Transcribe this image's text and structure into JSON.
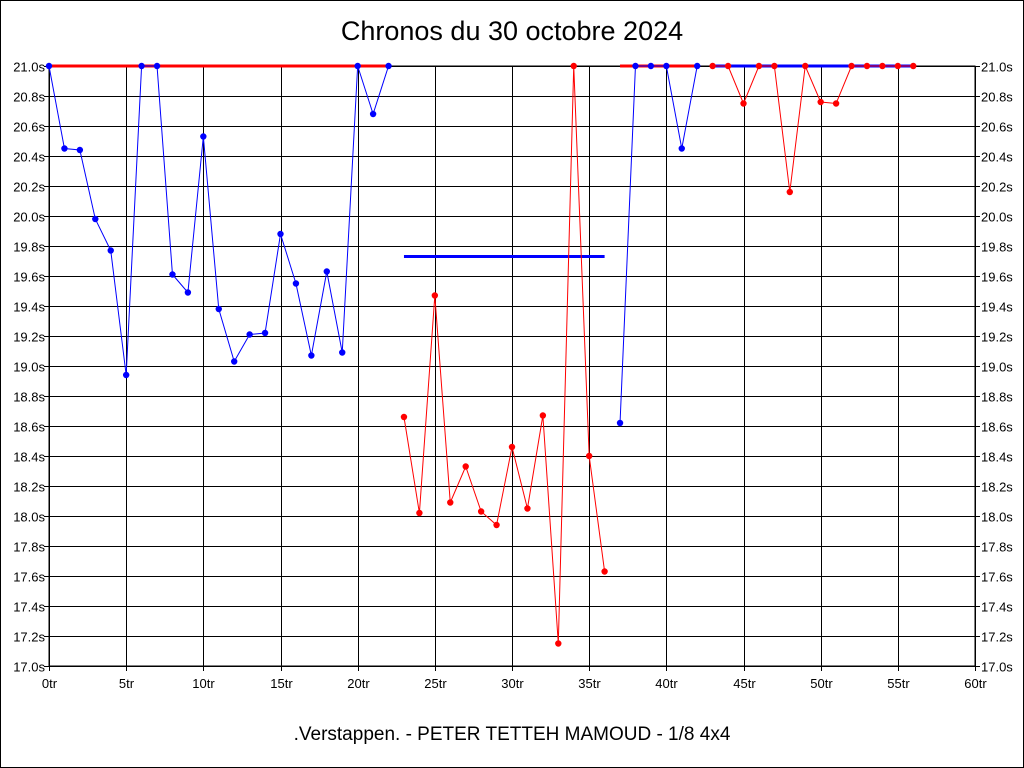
{
  "chart_data": {
    "type": "line",
    "title": "Chronos du 30 octobre 2024",
    "footer": ".Verstappen. - PETER TETTEH MAMOUD - 1/8 4x4",
    "xlim": [
      0,
      60
    ],
    "ylim": [
      17.0,
      21.0
    ],
    "x_tick_labels": [
      "0tr",
      "5tr",
      "10tr",
      "15tr",
      "20tr",
      "25tr",
      "30tr",
      "35tr",
      "40tr",
      "45tr",
      "50tr",
      "55tr",
      "60tr"
    ],
    "y_tick_labels": [
      "17.0s",
      "17.2s",
      "17.4s",
      "17.6s",
      "17.8s",
      "18.0s",
      "18.2s",
      "18.4s",
      "18.6s",
      "18.8s",
      "19.0s",
      "19.2s",
      "19.4s",
      "19.6s",
      "19.8s",
      "20.0s",
      "20.2s",
      "20.4s",
      "20.6s",
      "20.8s",
      "21.0s"
    ],
    "grid": true,
    "series": [
      {
        "color": "#0000ff",
        "x": [
          0,
          1,
          2,
          3,
          4,
          5,
          6,
          7,
          8,
          9,
          10,
          11,
          12,
          13,
          14,
          15,
          16,
          17,
          18,
          19,
          20,
          21,
          22
        ],
        "y": [
          21.0,
          20.45,
          20.44,
          19.98,
          19.77,
          18.94,
          21.0,
          21.0,
          19.61,
          19.49,
          20.53,
          19.38,
          19.03,
          19.21,
          19.22,
          19.88,
          19.55,
          19.07,
          19.63,
          19.09,
          21.0,
          20.68,
          21.0
        ]
      },
      {
        "color": "#ff0000",
        "x": [
          23,
          24,
          25,
          26,
          27,
          28,
          29,
          30,
          31,
          32,
          33,
          34,
          35,
          36
        ],
        "y": [
          18.66,
          18.02,
          19.47,
          18.09,
          18.33,
          18.03,
          17.94,
          18.46,
          18.05,
          18.67,
          17.15,
          21.0,
          18.4,
          17.63
        ]
      },
      {
        "color": "#0000ff",
        "x": [
          37,
          38,
          39,
          40,
          41,
          42
        ],
        "y": [
          18.62,
          21.0,
          21.0,
          21.0,
          20.45,
          21.0
        ]
      },
      {
        "color": "#ff0000",
        "x": [
          43,
          44,
          45,
          46,
          47,
          48,
          49,
          50,
          51,
          52,
          53,
          54,
          55,
          56
        ],
        "y": [
          21.0,
          21.0,
          20.75,
          21.0,
          21.0,
          20.16,
          21.0,
          20.76,
          20.75,
          21.0,
          21.0,
          21.0,
          21.0,
          21.0
        ]
      }
    ],
    "reference_lines": [
      {
        "color": "#ff0000",
        "x": [
          0,
          22
        ],
        "y": 21.0
      },
      {
        "color": "#0000ff",
        "x": [
          23,
          36
        ],
        "y": 19.73
      },
      {
        "color": "#ff0000",
        "x": [
          37,
          42
        ],
        "y": 21.0
      },
      {
        "color": "#0000ff",
        "x": [
          43,
          56
        ],
        "y": 21.0
      }
    ]
  }
}
